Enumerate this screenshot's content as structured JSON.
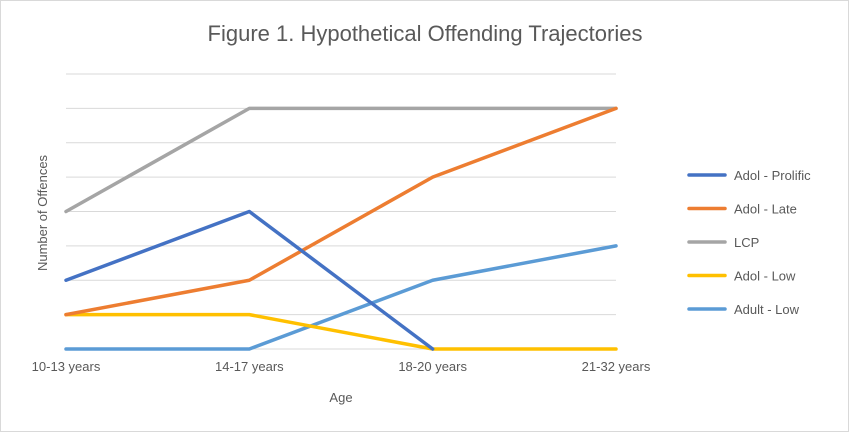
{
  "chart_data": {
    "type": "line",
    "title": "Figure 1. Hypothetical Offending Trajectories",
    "xlabel": "Age",
    "ylabel": "Number  of Offences",
    "categories": [
      "10-13 years",
      "14-17 years",
      "18-20 years",
      "21-32 years"
    ],
    "ylim": [
      0,
      8
    ],
    "grid": true,
    "legend_position": "right",
    "series": [
      {
        "name": "Adol - Prolific",
        "color": "#4472c4",
        "values": [
          2,
          4,
          0,
          null
        ]
      },
      {
        "name": "Adol - Late",
        "color": "#ed7d31",
        "values": [
          1,
          2,
          5,
          7
        ]
      },
      {
        "name": "LCP",
        "color": "#a5a5a5",
        "values": [
          4,
          7,
          7,
          7
        ]
      },
      {
        "name": "Adol - Low",
        "color": "#ffc000",
        "values": [
          1,
          1,
          0,
          0
        ]
      },
      {
        "name": "Adult - Low",
        "color": "#5b9bd5",
        "values": [
          0,
          0,
          2,
          3
        ]
      }
    ]
  }
}
